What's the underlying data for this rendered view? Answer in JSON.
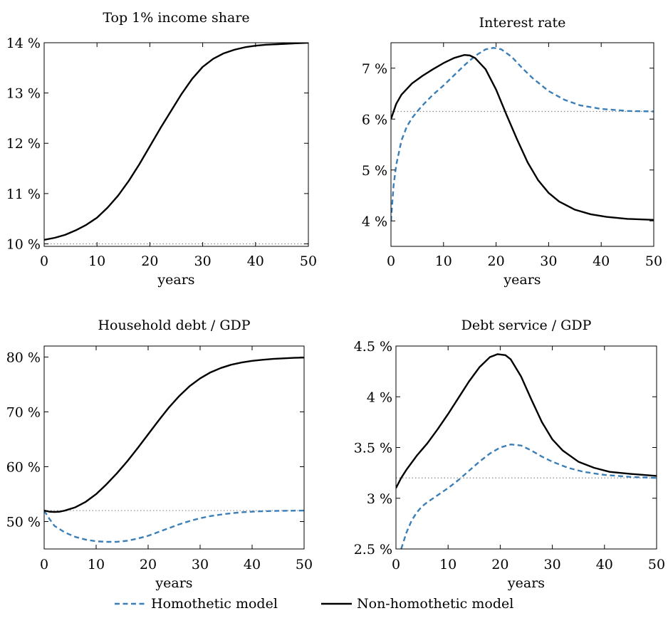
{
  "chart_data": [
    {
      "type": "line",
      "title": "Top 1% income share",
      "xlabel": "years",
      "ylabel": "",
      "xlim": [
        0,
        50
      ],
      "ylim": [
        9.95,
        14
      ],
      "xticks": [
        "0",
        "10",
        "20",
        "30",
        "40",
        "50"
      ],
      "yticks": [
        {
          "value": 10,
          "label": "10 %"
        },
        {
          "value": 11,
          "label": "11 %"
        },
        {
          "value": 12,
          "label": "12 %"
        },
        {
          "value": 13,
          "label": "13 %"
        },
        {
          "value": 14,
          "label": "14 %"
        }
      ],
      "reference_line": 10.0,
      "series": [
        {
          "style": "solid",
          "color": "#000000",
          "x": [
            0,
            2,
            4,
            6,
            8,
            10,
            12,
            14,
            16,
            18,
            20,
            22,
            24,
            26,
            28,
            30,
            32,
            34,
            36,
            38,
            40,
            42,
            44,
            46,
            48,
            50
          ],
          "y": [
            10.08,
            10.12,
            10.18,
            10.27,
            10.38,
            10.52,
            10.72,
            10.96,
            11.25,
            11.58,
            11.94,
            12.3,
            12.64,
            12.98,
            13.28,
            13.52,
            13.68,
            13.79,
            13.86,
            13.91,
            13.94,
            13.96,
            13.97,
            13.98,
            13.99,
            14.0
          ]
        }
      ]
    },
    {
      "type": "line",
      "title": "Interest rate",
      "xlabel": "years",
      "ylabel": "",
      "xlim": [
        0,
        50
      ],
      "ylim": [
        3.5,
        7.5
      ],
      "xticks": [
        "0",
        "10",
        "20",
        "30",
        "40",
        "50"
      ],
      "yticks": [
        {
          "value": 4,
          "label": "4 %"
        },
        {
          "value": 5,
          "label": "5 %"
        },
        {
          "value": 6,
          "label": "6 %"
        },
        {
          "value": 7,
          "label": "7 %"
        }
      ],
      "reference_line": 6.15,
      "series": [
        {
          "name": "Homothetic model",
          "style": "dashed",
          "color": "#3b7fb8",
          "x": [
            0,
            0.5,
            1,
            2,
            3,
            4,
            5,
            6,
            8,
            10,
            12,
            14,
            16,
            18,
            19.5,
            21,
            23,
            25,
            27,
            30,
            33,
            36,
            40,
            45,
            50
          ],
          "y": [
            4.0,
            4.7,
            5.1,
            5.58,
            5.85,
            6.02,
            6.15,
            6.27,
            6.48,
            6.66,
            6.86,
            7.06,
            7.24,
            7.37,
            7.4,
            7.37,
            7.22,
            7.0,
            6.8,
            6.55,
            6.38,
            6.27,
            6.2,
            6.16,
            6.15
          ]
        },
        {
          "name": "Non-homothetic model",
          "style": "solid",
          "color": "#000000",
          "x": [
            0,
            1,
            2,
            4,
            6,
            8,
            10,
            12,
            14,
            15,
            16,
            18,
            20,
            22,
            24,
            26,
            28,
            30,
            32,
            35,
            38,
            41,
            45,
            50
          ],
          "y": [
            6.0,
            6.3,
            6.48,
            6.7,
            6.85,
            6.98,
            7.1,
            7.2,
            7.26,
            7.25,
            7.2,
            6.98,
            6.58,
            6.08,
            5.6,
            5.15,
            4.8,
            4.55,
            4.38,
            4.22,
            4.13,
            4.08,
            4.04,
            4.02
          ]
        }
      ]
    },
    {
      "type": "line",
      "title": "Household debt / GDP",
      "xlabel": "years",
      "ylabel": "",
      "xlim": [
        0,
        50
      ],
      "ylim": [
        45,
        82
      ],
      "xticks": [
        "0",
        "10",
        "20",
        "30",
        "40",
        "50"
      ],
      "yticks": [
        {
          "value": 50,
          "label": "50 %"
        },
        {
          "value": 60,
          "label": "60 %"
        },
        {
          "value": 70,
          "label": "70 %"
        },
        {
          "value": 80,
          "label": "80 %"
        }
      ],
      "reference_line": 52.0,
      "series": [
        {
          "name": "Homothetic model",
          "style": "dashed",
          "color": "#3b7fb8",
          "x": [
            0,
            1,
            2,
            4,
            6,
            8,
            10,
            12,
            14,
            16,
            18,
            20,
            22,
            24,
            26,
            28,
            30,
            32,
            35,
            38,
            41,
            45,
            50
          ],
          "y": [
            52.0,
            50.5,
            49.2,
            48.0,
            47.2,
            46.7,
            46.4,
            46.3,
            46.3,
            46.5,
            46.9,
            47.4,
            48.1,
            48.8,
            49.5,
            50.1,
            50.6,
            51.0,
            51.4,
            51.7,
            51.85,
            51.95,
            52.0
          ]
        },
        {
          "name": "Non-homothetic model",
          "style": "solid",
          "color": "#000000",
          "x": [
            0,
            1,
            2,
            3,
            4,
            6,
            8,
            10,
            12,
            14,
            16,
            18,
            20,
            22,
            24,
            26,
            28,
            30,
            32,
            34,
            36,
            38,
            40,
            42,
            44,
            46,
            48,
            50
          ],
          "y": [
            52.0,
            51.8,
            51.75,
            51.8,
            52.0,
            52.6,
            53.6,
            55.0,
            56.8,
            58.8,
            61.0,
            63.4,
            65.9,
            68.4,
            70.8,
            72.9,
            74.7,
            76.1,
            77.2,
            78.0,
            78.6,
            79.0,
            79.3,
            79.5,
            79.65,
            79.75,
            79.85,
            79.9
          ]
        }
      ]
    },
    {
      "type": "line",
      "title": "Debt service / GDP",
      "xlabel": "years",
      "ylabel": "",
      "xlim": [
        0,
        50
      ],
      "ylim": [
        2.5,
        4.5
      ],
      "xticks": [
        "0",
        "10",
        "20",
        "30",
        "40",
        "50"
      ],
      "yticks": [
        {
          "value": 2.5,
          "label": "2.5 %"
        },
        {
          "value": 3,
          "label": "3 %"
        },
        {
          "value": 3.5,
          "label": "3.5 %"
        },
        {
          "value": 4,
          "label": "4 %"
        },
        {
          "value": 4.5,
          "label": "4.5 %"
        }
      ],
      "reference_line": 3.2,
      "series": [
        {
          "name": "Homothetic model",
          "style": "dashed",
          "color": "#3b7fb8",
          "x": [
            1.0,
            2,
            3,
            4,
            5,
            6,
            8,
            10,
            12,
            14,
            16,
            18,
            20,
            22,
            24,
            26,
            28,
            30,
            33,
            36,
            40,
            45,
            50
          ],
          "y": [
            2.5,
            2.66,
            2.78,
            2.86,
            2.92,
            2.96,
            3.03,
            3.1,
            3.18,
            3.27,
            3.36,
            3.44,
            3.5,
            3.53,
            3.52,
            3.47,
            3.41,
            3.36,
            3.3,
            3.26,
            3.23,
            3.21,
            3.2
          ]
        },
        {
          "name": "Non-homothetic model",
          "style": "solid",
          "color": "#000000",
          "x": [
            0,
            1,
            2,
            4,
            6,
            8,
            10,
            12,
            14,
            16,
            18,
            19.5,
            21,
            22,
            24,
            26,
            28,
            30,
            32,
            35,
            38,
            41,
            45,
            50
          ],
          "y": [
            3.1,
            3.2,
            3.28,
            3.42,
            3.54,
            3.68,
            3.83,
            3.99,
            4.15,
            4.29,
            4.39,
            4.42,
            4.41,
            4.37,
            4.2,
            3.97,
            3.75,
            3.58,
            3.47,
            3.36,
            3.3,
            3.26,
            3.24,
            3.22
          ]
        }
      ]
    }
  ],
  "legend": {
    "items": [
      {
        "label": "Homothetic model",
        "style": "dashed",
        "color": "#3b7fb8"
      },
      {
        "label": "Non-homothetic model",
        "style": "solid",
        "color": "#000000"
      }
    ]
  }
}
